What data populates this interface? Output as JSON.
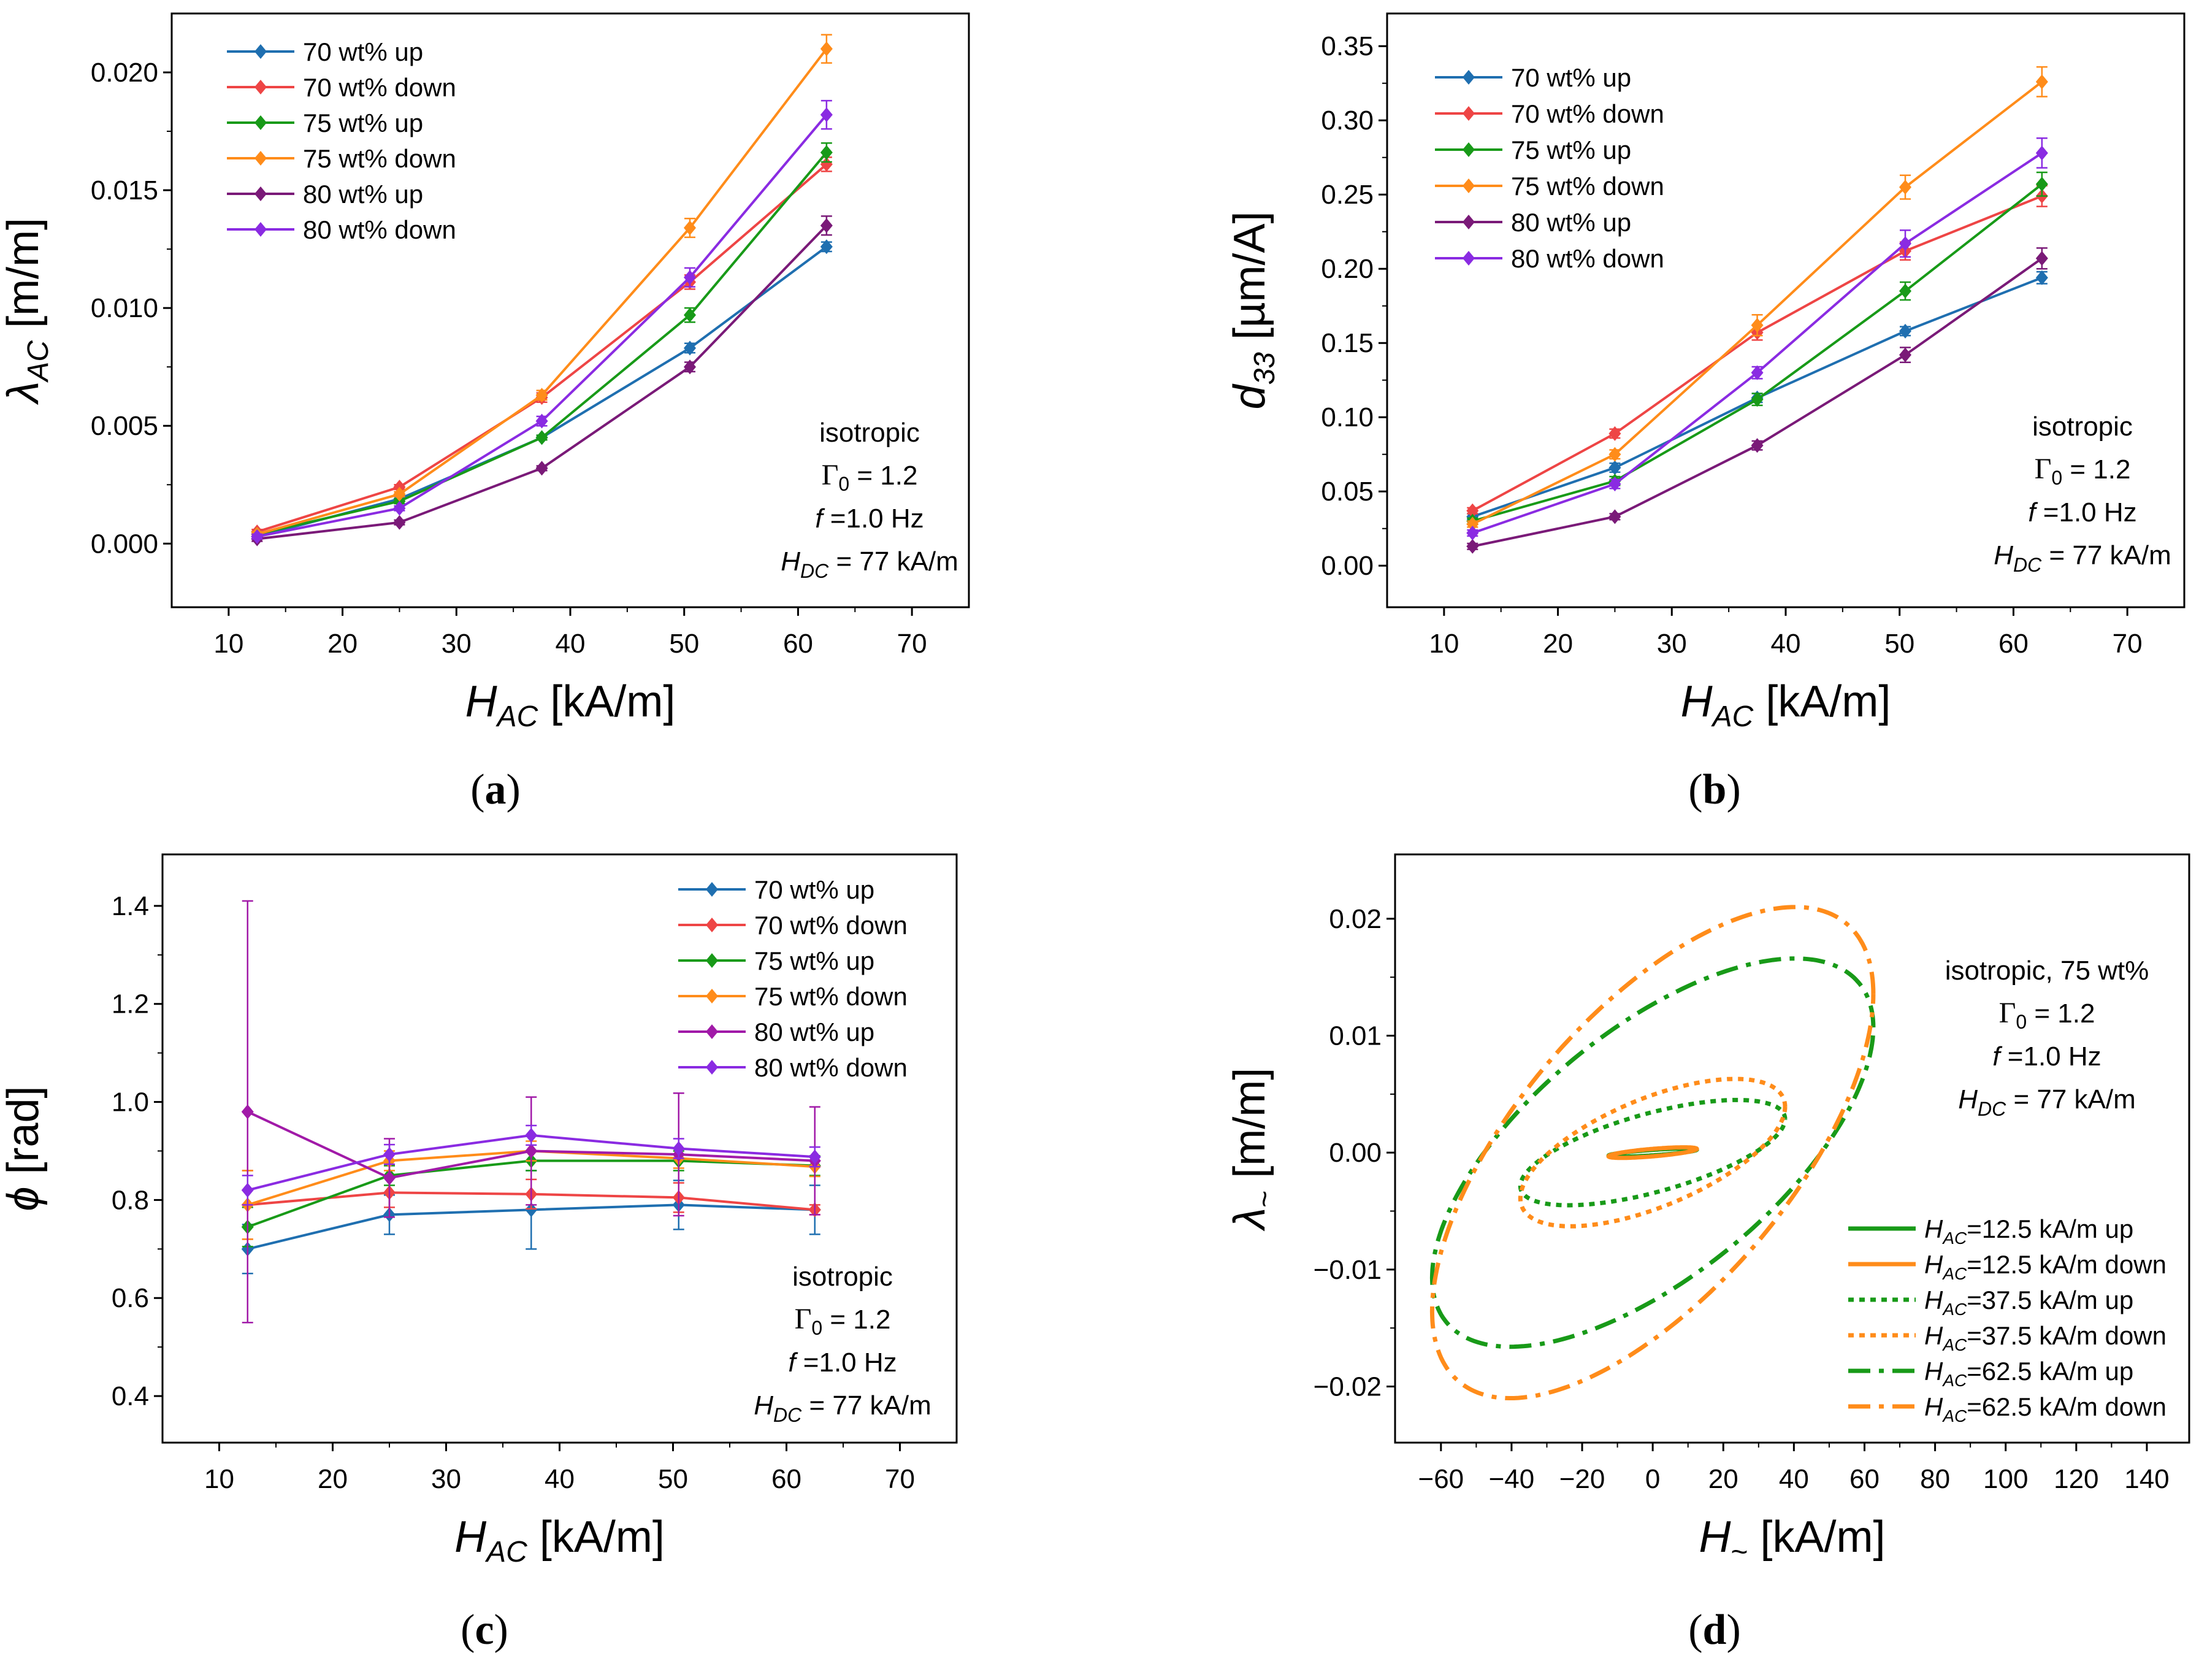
{
  "chart_data": [
    {
      "type": "line",
      "panel_label": "(a)",
      "x": [
        12.5,
        25,
        37.5,
        50.5,
        62.5
      ],
      "xlim": [
        5,
        75
      ],
      "xticks": [
        10,
        20,
        30,
        40,
        50,
        60,
        70
      ],
      "ylim": [
        -0.0027,
        0.0225
      ],
      "yticks": [
        0.0,
        0.005,
        0.01,
        0.015,
        0.02
      ],
      "ytick_labels": [
        "0.000",
        "0.005",
        "0.010",
        "0.015",
        "0.020"
      ],
      "xlabel": {
        "main": "H",
        "sub": "AC",
        "unit": " [kA/m]"
      },
      "ylabel": {
        "main": "λ",
        "sub": "AC",
        "unit": " [m/m]"
      },
      "series": [
        {
          "name": "70 wt% up",
          "color": "#1f6fb0",
          "values": [
            0.0003,
            0.0019,
            0.0045,
            0.0083,
            0.0126
          ],
          "err": [
            0.0001,
            0.0001,
            0.0001,
            0.0002,
            0.0002
          ]
        },
        {
          "name": "70 wt% down",
          "color": "#ee4545",
          "values": [
            0.0005,
            0.0024,
            0.0062,
            0.0111,
            0.0161
          ],
          "err": [
            0.0001,
            0.0001,
            0.0002,
            0.0003,
            0.0003
          ]
        },
        {
          "name": "75 wt% up",
          "color": "#189a18",
          "values": [
            0.0004,
            0.0018,
            0.0045,
            0.0097,
            0.0166
          ],
          "err": [
            0.0001,
            0.0001,
            0.0001,
            0.0003,
            0.0004
          ]
        },
        {
          "name": "75 wt% down",
          "color": "#ff8c1a",
          "values": [
            0.0004,
            0.0021,
            0.0063,
            0.0134,
            0.021
          ],
          "err": [
            0.0001,
            0.0001,
            0.0002,
            0.0004,
            0.0006
          ]
        },
        {
          "name": "80 wt% up",
          "color": "#7a1a78",
          "values": [
            0.0002,
            0.0009,
            0.0032,
            0.0075,
            0.0135
          ],
          "err": [
            0.0001,
            0.0001,
            0.0001,
            0.0002,
            0.0004
          ]
        },
        {
          "name": "80 wt% down",
          "color": "#8a2be2",
          "values": [
            0.0003,
            0.0015,
            0.0052,
            0.0113,
            0.0182
          ],
          "err": [
            0.0001,
            0.0001,
            0.0002,
            0.0004,
            0.0006
          ]
        }
      ],
      "annotation": [
        "isotropic",
        "Γ0 = 1.2",
        "f =1.0 Hz",
        "HDC = 77 kA/m"
      ]
    },
    {
      "type": "line",
      "panel_label": "(b)",
      "x": [
        12.5,
        25,
        37.5,
        50.5,
        62.5
      ],
      "xlim": [
        5,
        75
      ],
      "xticks": [
        10,
        20,
        30,
        40,
        50,
        60,
        70
      ],
      "ylim": [
        -0.028,
        0.372
      ],
      "yticks": [
        0.0,
        0.05,
        0.1,
        0.15,
        0.2,
        0.25,
        0.3,
        0.35
      ],
      "ytick_labels": [
        "0.00",
        "0.05",
        "0.10",
        "0.15",
        "0.20",
        "0.25",
        "0.30",
        "0.35"
      ],
      "xlabel": {
        "main": "H",
        "sub": "AC",
        "unit": " [kA/m]"
      },
      "ylabel": {
        "main": "d",
        "sub": "33",
        "unit": " [µm/A]"
      },
      "series": [
        {
          "name": "70 wt% up",
          "color": "#1f6fb0",
          "values": [
            0.033,
            0.066,
            0.113,
            0.158,
            0.194
          ],
          "err": [
            0.002,
            0.003,
            0.003,
            0.003,
            0.004
          ]
        },
        {
          "name": "70 wt% down",
          "color": "#ee4545",
          "values": [
            0.037,
            0.089,
            0.157,
            0.212,
            0.249
          ],
          "err": [
            0.002,
            0.003,
            0.005,
            0.006,
            0.007
          ]
        },
        {
          "name": "75 wt% up",
          "color": "#189a18",
          "values": [
            0.03,
            0.057,
            0.112,
            0.185,
            0.257
          ],
          "err": [
            0.002,
            0.003,
            0.004,
            0.006,
            0.008
          ]
        },
        {
          "name": "75 wt% down",
          "color": "#ff8c1a",
          "values": [
            0.028,
            0.075,
            0.162,
            0.255,
            0.326
          ],
          "err": [
            0.002,
            0.003,
            0.007,
            0.008,
            0.01
          ]
        },
        {
          "name": "80 wt% up",
          "color": "#7a1a78",
          "values": [
            0.013,
            0.033,
            0.081,
            0.142,
            0.207
          ],
          "err": [
            0.002,
            0.002,
            0.003,
            0.005,
            0.007
          ]
        },
        {
          "name": "80 wt% down",
          "color": "#8a2be2",
          "values": [
            0.022,
            0.055,
            0.13,
            0.217,
            0.278
          ],
          "err": [
            0.002,
            0.003,
            0.004,
            0.009,
            0.01
          ]
        }
      ],
      "annotation": [
        "isotropic",
        "Γ0 = 1.2",
        "f =1.0 Hz",
        "HDC = 77 kA/m"
      ]
    },
    {
      "type": "line",
      "panel_label": "(c)",
      "x": [
        12.5,
        25,
        37.5,
        50.5,
        62.5
      ],
      "xlim": [
        5,
        75
      ],
      "xticks": [
        10,
        20,
        30,
        40,
        50,
        60,
        70
      ],
      "ylim": [
        0.305,
        1.505
      ],
      "yticks": [
        0.4,
        0.6,
        0.8,
        1.0,
        1.2,
        1.4
      ],
      "ytick_labels": [
        "0.4",
        "0.6",
        "0.8",
        "1.0",
        "1.2",
        "1.4"
      ],
      "xlabel": {
        "main": "H",
        "sub": "AC",
        "unit": " [kA/m]"
      },
      "ylabel": {
        "main": "ϕ",
        "sub": "",
        "unit": " [rad]"
      },
      "series": [
        {
          "name": "70 wt% up",
          "color": "#1f6fb0",
          "values": [
            0.7,
            0.77,
            0.78,
            0.79,
            0.78
          ],
          "err": [
            0.05,
            0.04,
            0.08,
            0.05,
            0.05
          ]
        },
        {
          "name": "70 wt% down",
          "color": "#ee4545",
          "values": [
            0.79,
            0.815,
            0.812,
            0.805,
            0.78
          ],
          "err": [
            0.07,
            0.03,
            0.03,
            0.03,
            0.01
          ]
        },
        {
          "name": "75 wt% up",
          "color": "#189a18",
          "values": [
            0.745,
            0.85,
            0.88,
            0.88,
            0.87
          ],
          "err": [
            0.04,
            0.02,
            0.02,
            0.02,
            0.02
          ]
        },
        {
          "name": "75 wt% down",
          "color": "#ff8c1a",
          "values": [
            0.79,
            0.88,
            0.9,
            0.885,
            0.868
          ],
          "err": [
            0.07,
            0.02,
            0.02,
            0.02,
            0.02
          ]
        },
        {
          "name": "80 wt% up",
          "color": "#a11aa8",
          "values": [
            0.98,
            0.845,
            0.9,
            0.893,
            0.88
          ],
          "err": [
            0.43,
            0.08,
            0.11,
            0.125,
            0.11
          ]
        },
        {
          "name": "80 wt% down",
          "color": "#8a2be2",
          "values": [
            0.82,
            0.893,
            0.932,
            0.905,
            0.888
          ],
          "err": [
            0.03,
            0.02,
            0.02,
            0.02,
            0.02
          ]
        }
      ],
      "annotation": [
        "isotropic",
        "Γ0 = 1.2",
        "f =1.0 Hz",
        "HDC = 77 kA/m"
      ]
    },
    {
      "type": "line",
      "panel_label": "(d)",
      "xlim": [
        -73,
        152
      ],
      "xticks": [
        -60,
        -40,
        -20,
        0,
        20,
        40,
        60,
        80,
        100,
        120,
        140
      ],
      "xtick_labels": [
        "−60",
        "−40",
        "−20",
        "0",
        "20",
        "40",
        "60",
        "80",
        "100",
        "120",
        "140"
      ],
      "ylim": [
        -0.0248,
        0.0255
      ],
      "yticks": [
        -0.02,
        -0.01,
        0.0,
        0.01,
        0.02
      ],
      "ytick_labels": [
        "−0.02",
        "−0.01",
        "0.00",
        "0.01",
        "0.02"
      ],
      "xlabel": {
        "main": "H",
        "sub": "~",
        "unit": " [kA/m]"
      },
      "ylabel": {
        "main": "λ",
        "sub": "~",
        "unit": " [m/m]"
      },
      "series": [
        {
          "name": "HAC=12.5 kA/m up",
          "legend_sub": "AC",
          "legend_rest": "=12.5 kA/m up",
          "color": "#189a18",
          "dash": "solid",
          "amplitude": 12.5,
          "lambda_amp": 0.00035,
          "phase": 0.745
        },
        {
          "name": "HAC=12.5 kA/m down",
          "legend_sub": "AC",
          "legend_rest": "=12.5 kA/m down",
          "color": "#ff8c1a",
          "dash": "solid",
          "amplitude": 12.5,
          "lambda_amp": 0.00045,
          "phase": 0.79
        },
        {
          "name": "HAC=37.5 kA/m up",
          "legend_sub": "AC",
          "legend_rest": "=37.5 kA/m up",
          "color": "#189a18",
          "dash": "dot",
          "amplitude": 37.5,
          "lambda_amp": 0.0045,
          "phase": 0.88
        },
        {
          "name": "HAC=37.5 kA/m down",
          "legend_sub": "AC",
          "legend_rest": "=37.5 kA/m down",
          "color": "#ff8c1a",
          "dash": "dot",
          "amplitude": 37.5,
          "lambda_amp": 0.0063,
          "phase": 0.9
        },
        {
          "name": "HAC=62.5 kA/m up",
          "legend_sub": "AC",
          "legend_rest": "=62.5 kA/m up",
          "color": "#189a18",
          "dash": "dashdot",
          "amplitude": 62.5,
          "lambda_amp": 0.0166,
          "phase": 0.87
        },
        {
          "name": "HAC=62.5 kA/m down",
          "legend_sub": "AC",
          "legend_rest": "=62.5 kA/m down",
          "color": "#ff8c1a",
          "dash": "dashdot",
          "amplitude": 62.5,
          "lambda_amp": 0.021,
          "phase": 0.868
        }
      ],
      "annotation": [
        "isotropic, 75 wt%",
        "Γ0 = 1.2",
        "f =1.0 Hz",
        "HDC = 77 kA/m"
      ]
    }
  ]
}
